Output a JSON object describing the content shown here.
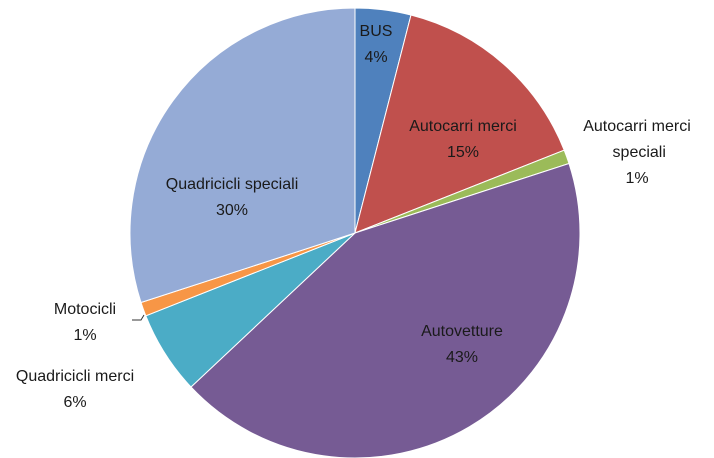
{
  "chart_data": {
    "type": "pie",
    "categories": [
      "BUS",
      "Autocarri merci",
      "Autocarri merci speciali",
      "Autovetture",
      "Quadricicli merci",
      "Motocicli",
      "Quadricicli speciali"
    ],
    "values": [
      4,
      15,
      1,
      43,
      6,
      1,
      30
    ],
    "value_labels": [
      "4%",
      "15%",
      "1%",
      "43%",
      "6%",
      "1%",
      "30%"
    ],
    "colors": [
      "#4f81bd",
      "#c0504d",
      "#9bbb59",
      "#765b94",
      "#4bacc6",
      "#f79646",
      "#95abd6"
    ]
  }
}
